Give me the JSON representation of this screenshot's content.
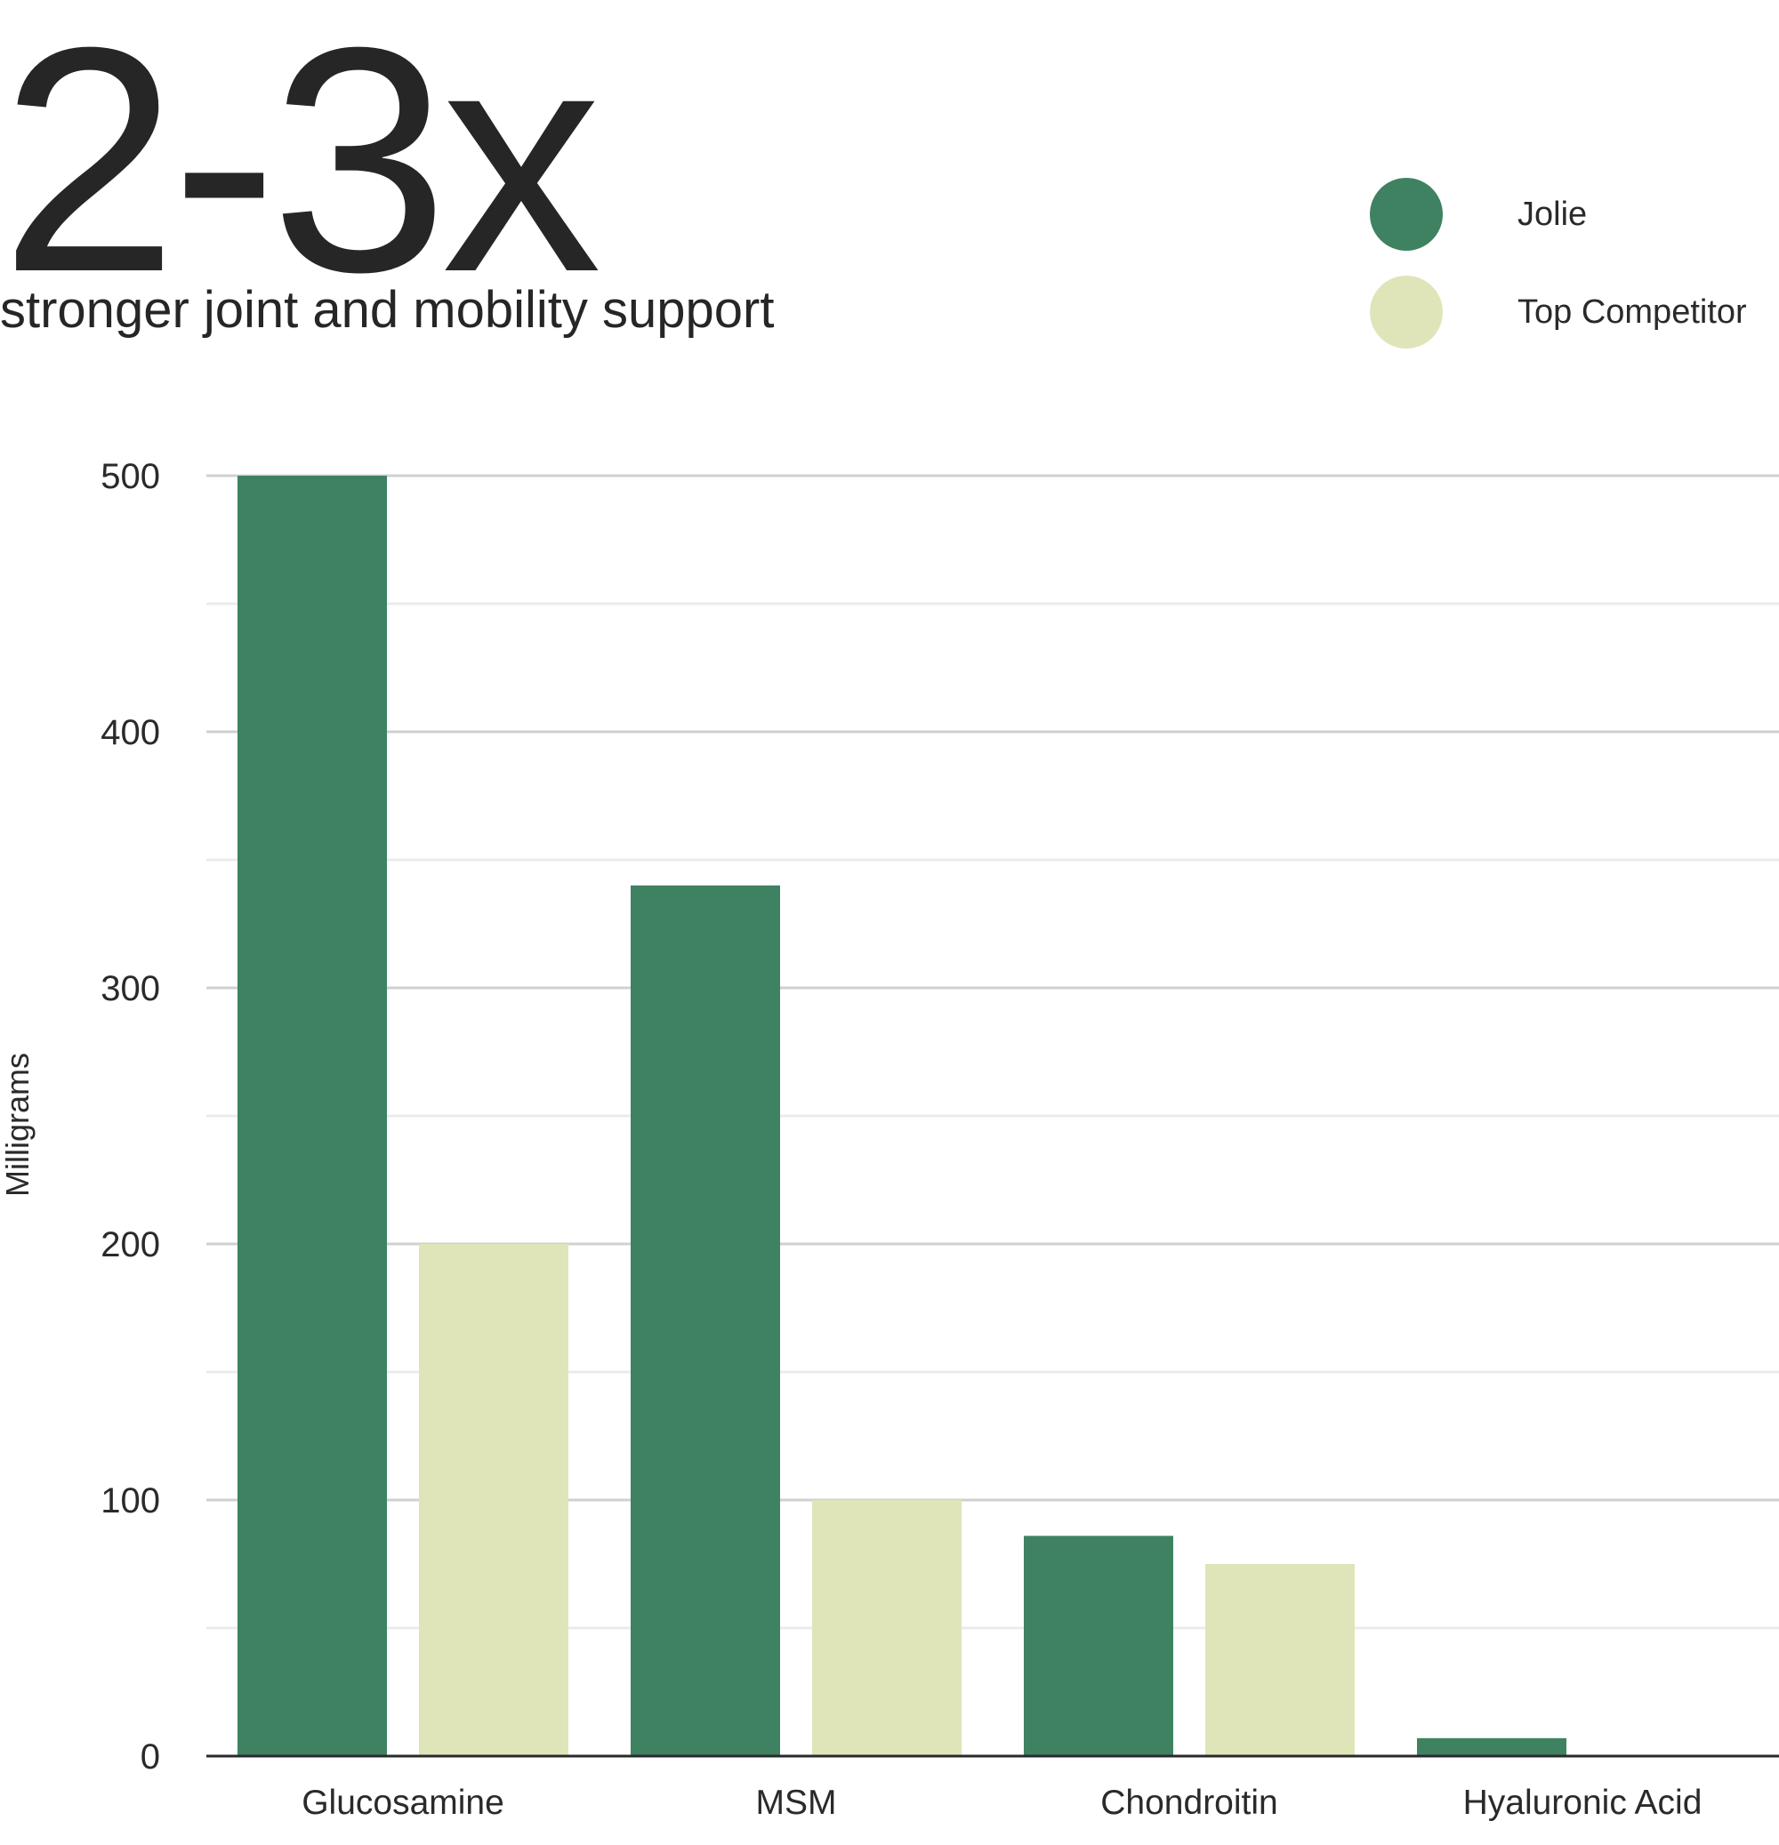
{
  "headline": "2-3x",
  "subtitle": "stronger joint and mobility support",
  "legend": {
    "position": "top-right",
    "items": [
      {
        "label": "Jolie",
        "color": "#3f8262"
      },
      {
        "label": "Top Competitor",
        "color": "#dfe5b9"
      }
    ]
  },
  "chart_data": {
    "type": "bar",
    "categories": [
      "Glucosamine",
      "MSM",
      "Chondroitin",
      "Hyaluronic Acid"
    ],
    "series": [
      {
        "name": "Jolie",
        "values": [
          500,
          340,
          86,
          7
        ],
        "color": "#3f8262"
      },
      {
        "name": "Top Competitor",
        "values": [
          200,
          100,
          75,
          0
        ],
        "color": "#dfe5b9"
      }
    ],
    "ylabel": "Milligrams",
    "xlabel": "",
    "ylim": [
      0,
      500
    ],
    "yticks": [
      "0",
      "100",
      "200",
      "300",
      "400",
      "500"
    ],
    "grid": true
  }
}
